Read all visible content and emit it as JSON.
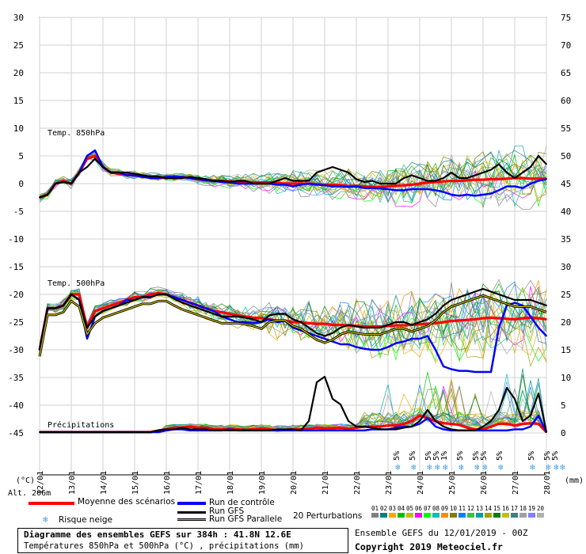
{
  "chart_data": {
    "type": "line",
    "title": "Diagramme des ensembles GEFS sur 384h : 41.8N 12.6E",
    "subtitle": "Températures 850hPa et 500hPa (°C) , précipitations (mm)",
    "left_axis": {
      "unit": "(°C)",
      "ticks": [
        30,
        25,
        20,
        15,
        10,
        5,
        0,
        -5,
        -10,
        -15,
        -20,
        -25,
        -30,
        -35,
        -40,
        -45
      ],
      "range": [
        -45,
        30
      ]
    },
    "right_axis": {
      "unit": "(mm)",
      "ticks": [
        75,
        70,
        65,
        60,
        55,
        50,
        45,
        40,
        35,
        30,
        25,
        20,
        15,
        10,
        5,
        0
      ],
      "range": [
        0,
        75
      ]
    },
    "x_ticks": [
      "13/01",
      "14/01",
      "15/01",
      "16/01",
      "17/01",
      "18/01",
      "19/01",
      "20/01",
      "21/01",
      "22/01",
      "23/01",
      "24/01",
      "25/01",
      "26/01",
      "27/01",
      "28/01"
    ],
    "x_first_label": "12/01",
    "altitude_label": "Alt. 206m",
    "panel_labels": {
      "t850": "Temp. 850hPa",
      "t500": "Temp. 500hPa",
      "precip": "Précipitations"
    },
    "x_steps": 65,
    "series": [
      {
        "name": "Moyenne des scénarios",
        "color": "#ff0000",
        "panel": "t850",
        "values": [
          -2.5,
          -2,
          0,
          0.5,
          0,
          2,
          4.5,
          5,
          3,
          2,
          1.8,
          1.6,
          1.5,
          1.3,
          1.2,
          1.1,
          1,
          1,
          1.2,
          1,
          0.8,
          0.6,
          0.5,
          0.5,
          0.4,
          0.3,
          0.3,
          0.2,
          0.2,
          0.2,
          0.1,
          0,
          0,
          0,
          0,
          -0.1,
          -0.2,
          -0.2,
          -0.3,
          -0.4,
          -0.4,
          -0.5,
          -0.6,
          -0.6,
          -0.5,
          -0.4,
          -0.3,
          -0.2,
          0,
          0.2,
          0.3,
          0.4,
          0.5,
          0.5,
          0.6,
          0.7,
          0.7,
          0.8,
          0.8,
          0.9,
          1,
          1,
          0.9,
          0.9,
          0.9
        ]
      },
      {
        "name": "Run de contrôle",
        "color": "#0000ff",
        "panel": "t850",
        "values": [
          -2.5,
          -2,
          0,
          0.3,
          0,
          2,
          5,
          6,
          3,
          2,
          2,
          1.5,
          1.5,
          1.2,
          1,
          1,
          1.2,
          1.3,
          1.2,
          1,
          0.8,
          0.6,
          0.5,
          0.3,
          0.2,
          0,
          0,
          0,
          0,
          0,
          -0.2,
          -0.2,
          -0.5,
          -0.2,
          0,
          -0.2,
          -0.3,
          -0.5,
          -0.5,
          -0.6,
          -0.5,
          -0.8,
          -0.8,
          -0.9,
          -1,
          -1.2,
          -1.2,
          -1,
          -1,
          -1,
          -1.2,
          -1.5,
          -2,
          -2.2,
          -2,
          -2.2,
          -2,
          -1.8,
          -1.2,
          -0.5,
          -0.5,
          -0.8,
          0,
          0.5,
          0.8
        ]
      },
      {
        "name": "Run GFS",
        "color": "#000000",
        "panel": "t850",
        "values": [
          -2.5,
          -2,
          0,
          0.3,
          0,
          2,
          3,
          4.5,
          3,
          2,
          2,
          2,
          1.8,
          1.5,
          1.3,
          1.3,
          1,
          1,
          1,
          1.2,
          1,
          0.8,
          0.5,
          0.5,
          0.3,
          0.5,
          0.5,
          0,
          0,
          0,
          0.5,
          1,
          0.5,
          0.5,
          0.5,
          2,
          2.5,
          3,
          2.5,
          2,
          0.8,
          0.3,
          0.5,
          0,
          0,
          0,
          1,
          1.5,
          1,
          0.5,
          0.5,
          1,
          2,
          1,
          1,
          1.5,
          2,
          2.5,
          3.5,
          2,
          1,
          2,
          3,
          5,
          3.5
        ]
      },
      {
        "name": "Moyenne des scénarios",
        "color": "#ff0000",
        "panel": "t500",
        "values": [
          -30,
          -22.5,
          -22.5,
          -22,
          -20,
          -20,
          -26,
          -23,
          -22.5,
          -22,
          -21.5,
          -21,
          -20.5,
          -20.5,
          -20,
          -19.8,
          -20,
          -20.5,
          -21,
          -21.5,
          -22,
          -22.5,
          -23,
          -23.2,
          -23.5,
          -23.8,
          -24,
          -24.2,
          -24.3,
          -24.5,
          -24.7,
          -24.8,
          -25,
          -25,
          -25.2,
          -25.3,
          -25.3,
          -25.5,
          -25.5,
          -25.6,
          -25.7,
          -25.8,
          -25.8,
          -25.8,
          -25.7,
          -25.6,
          -25.6,
          -25.5,
          -25.4,
          -25.3,
          -25.2,
          -25,
          -24.8,
          -24.7,
          -24.6,
          -24.5,
          -24.3,
          -24.2,
          -24.3,
          -24.4,
          -24.5,
          -24.3,
          -24.2,
          -24.3,
          -24.5
        ]
      },
      {
        "name": "Run de contrôle",
        "color": "#0000ff",
        "panel": "t500",
        "values": [
          -30,
          -22.5,
          -22.5,
          -22,
          -20,
          -21,
          -28,
          -24,
          -23,
          -22.5,
          -22,
          -21,
          -21,
          -20.5,
          -20.5,
          -20,
          -20,
          -20.5,
          -21,
          -21.5,
          -22,
          -22.5,
          -23,
          -24,
          -24.5,
          -25,
          -25,
          -25.2,
          -25,
          -24.5,
          -25,
          -24.8,
          -26,
          -26.5,
          -27,
          -27.5,
          -28,
          -28.5,
          -29,
          -29,
          -29.5,
          -29.8,
          -30,
          -30,
          -29.5,
          -28.8,
          -28.5,
          -28,
          -28,
          -27.5,
          -30,
          -33,
          -33.5,
          -33.8,
          -33.8,
          -34,
          -34,
          -34,
          -26,
          -22,
          -21.5,
          -22,
          -24,
          -26,
          -27.5
        ]
      },
      {
        "name": "Run GFS",
        "color": "#000000",
        "panel": "t500",
        "values": [
          -30,
          -22.5,
          -22.5,
          -22,
          -20,
          -21,
          -26,
          -24,
          -23,
          -22.5,
          -22,
          -21.5,
          -21,
          -20.5,
          -20.5,
          -20,
          -20,
          -20.8,
          -21.5,
          -22,
          -22.5,
          -23,
          -23.5,
          -24,
          -24,
          -24,
          -24.2,
          -24.5,
          -25,
          -23.8,
          -23.5,
          -23.5,
          -24.5,
          -25,
          -26,
          -27,
          -27.5,
          -27,
          -26,
          -25.5,
          -25.8,
          -26,
          -26,
          -26,
          -25.5,
          -25,
          -25,
          -25.5,
          -25,
          -24.5,
          -23.5,
          -22,
          -21,
          -20.5,
          -20,
          -19.5,
          -19,
          -19.5,
          -20,
          -20.5,
          -21,
          -21,
          -21,
          -21.5,
          -22
        ]
      },
      {
        "name": "Moyenne des scénarios",
        "color": "#ff0000",
        "panel": "precip",
        "values": [
          0,
          0,
          0,
          0,
          0,
          0,
          0,
          0,
          0,
          0,
          0,
          0,
          0,
          0,
          0,
          0.3,
          0.5,
          0.8,
          0.8,
          1,
          0.8,
          0.8,
          0.5,
          0.5,
          0.6,
          0.5,
          0.4,
          0.5,
          0.6,
          0.5,
          0.3,
          0.4,
          0.5,
          0.5,
          0.6,
          0.8,
          0.7,
          0.7,
          0.8,
          0.6,
          0.8,
          1,
          1,
          1,
          1.2,
          1.2,
          1.5,
          2,
          3,
          2.5,
          2,
          1.6,
          1.5,
          1.3,
          0.8,
          0.5,
          0.5,
          1,
          1.5,
          1.5,
          1.2,
          1.5,
          1.6,
          1.5,
          0
        ]
      },
      {
        "name": "Run de contrôle",
        "color": "#0000ff",
        "panel": "precip",
        "values": [
          0,
          0,
          0,
          0,
          0,
          0,
          0,
          0,
          0,
          0,
          0,
          0,
          0,
          0,
          0,
          0,
          0.3,
          0.5,
          0.5,
          0.3,
          0.3,
          0.3,
          0.3,
          0.3,
          0.5,
          0.3,
          0.3,
          0.3,
          0.3,
          0.3,
          0.3,
          0.3,
          0.3,
          0.3,
          0.3,
          0.3,
          0.3,
          0.3,
          0.3,
          0.3,
          0.3,
          0.3,
          0.5,
          0.5,
          0.5,
          0.8,
          1,
          1,
          1.5,
          2.5,
          1,
          0.5,
          0.3,
          0.3,
          0.3,
          0.3,
          0.3,
          0.3,
          0.3,
          0.3,
          0.5,
          0.5,
          1,
          3,
          0
        ]
      },
      {
        "name": "Run GFS",
        "color": "#000000",
        "panel": "precip",
        "values": [
          0,
          0,
          0,
          0,
          0,
          0,
          0,
          0,
          0,
          0,
          0,
          0,
          0,
          0,
          0,
          0.3,
          0.5,
          0.5,
          0.8,
          0.5,
          0.5,
          0.5,
          0.3,
          0.3,
          0.3,
          0.3,
          0.3,
          0.3,
          0.3,
          0.3,
          0.5,
          0.5,
          0.5,
          0.3,
          2,
          9,
          10,
          6,
          5,
          2,
          1,
          1,
          0.8,
          0.5,
          0.5,
          0.5,
          0.8,
          1,
          2,
          4,
          2,
          1,
          0.5,
          0.3,
          0.3,
          0.3,
          1,
          2,
          4,
          8,
          6,
          2,
          3,
          7,
          0
        ]
      }
    ],
    "snow_risk": [
      {
        "step": 46,
        "label": "5%",
        "flakes": 1
      },
      {
        "step": 48,
        "label": "5%",
        "flakes": 1
      },
      {
        "step": 50,
        "label": "5%",
        "flakes": 1
      },
      {
        "step": 51,
        "label": "5%",
        "flakes": 1
      },
      {
        "step": 52,
        "label": "1%",
        "flakes": 1
      },
      {
        "step": 54,
        "label": "5%",
        "flakes": 1
      },
      {
        "step": 56,
        "label": "5%",
        "flakes": 1
      },
      {
        "step": 57,
        "label": "5%",
        "flakes": 1
      },
      {
        "step": 59,
        "label": "5%",
        "flakes": 1
      },
      {
        "step": 63,
        "label": "5%",
        "flakes": 1
      },
      {
        "step": 65,
        "label": "5%",
        "flakes": 1
      },
      {
        "step": 66,
        "label": "5%",
        "flakes": 2
      }
    ],
    "legend": {
      "mean": "Moyenne des scénarios",
      "control": "Run de contrôle",
      "gfs": "Run GFS",
      "gfs_parallel": "Run GFS Parallele",
      "snow": "Risque neige",
      "perturbations": "20 Perturbations",
      "pert_numbers": [
        "01",
        "02",
        "03",
        "04",
        "05",
        "06",
        "07",
        "08",
        "09",
        "10",
        "11",
        "12",
        "13",
        "14",
        "15",
        "16",
        "17",
        "18",
        "19",
        "20"
      ],
      "pert_colors": [
        "#808080",
        "#008080",
        "#ffa500",
        "#00c000",
        "#c0c000",
        "#ff00ff",
        "#00ff00",
        "#00c0c0",
        "#ff8c00",
        "#808000",
        "#0080ff",
        "#40c040",
        "#00a0a0",
        "#a0a000",
        "#008000",
        "#c0c000",
        "#408080",
        "#a0a0a0",
        "#8080ff",
        "#b0b0b0"
      ]
    },
    "footer": {
      "title": "Diagramme des ensembles GEFS sur 384h : 41.8N 12.6E",
      "subtitle": "Températures 850hPa et 500hPa (°C) , précipitations (mm)",
      "run": "Ensemble GEFS du 12/01/2019 - 00Z",
      "copyright": "Copyright 2019 Meteociel.fr"
    }
  }
}
